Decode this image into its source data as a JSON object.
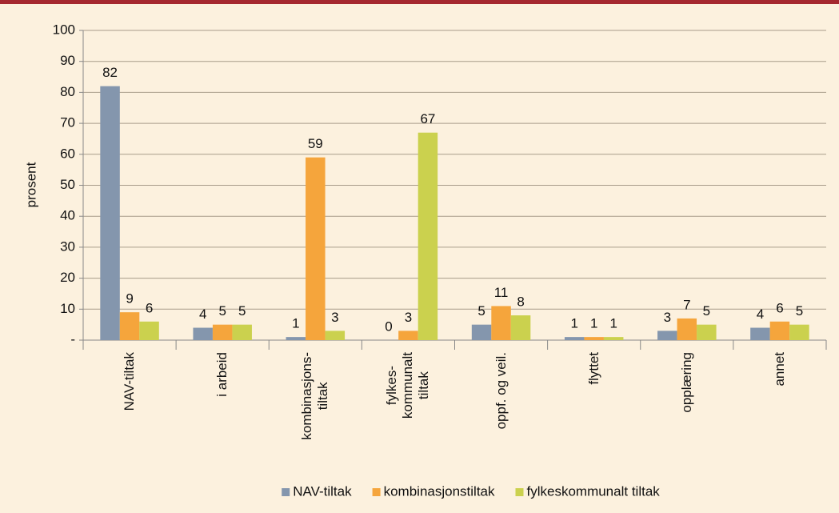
{
  "chart_data": {
    "type": "bar",
    "y_label": "prosent",
    "categories": [
      "NAV-tiltak",
      "i arbeid",
      "kombinasjons-\ntiltak",
      "fylkes-\nkommunalt\ntiltak",
      "oppf. og veil.",
      "flyttet",
      "opplæring",
      "annet"
    ],
    "series": [
      {
        "name": "NAV-tiltak",
        "color": "#8496ad",
        "values": [
          82,
          4,
          1,
          0,
          5,
          1,
          3,
          4
        ]
      },
      {
        "name": "kombinasjonstiltak",
        "color": "#f5a53c",
        "values": [
          9,
          5,
          59,
          3,
          11,
          1,
          7,
          6
        ]
      },
      {
        "name": "fylkeskommunalt tiltak",
        "color": "#cbd14e",
        "values": [
          6,
          5,
          3,
          67,
          8,
          1,
          5,
          5
        ]
      }
    ],
    "ylim": [
      0,
      100
    ],
    "yticks": [
      {
        "value": 0,
        "label": "-"
      },
      10,
      20,
      30,
      40,
      50,
      60,
      70,
      80,
      90,
      100
    ],
    "grid": true,
    "legend": "bottom"
  }
}
